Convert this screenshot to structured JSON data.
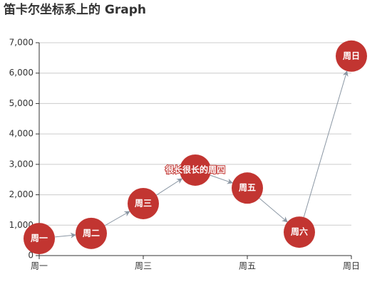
{
  "chart_data": {
    "type": "graph",
    "title": "笛卡尔坐标系上的 Graph",
    "categories": [
      "周一",
      null,
      "周三",
      null,
      "周五",
      null,
      "周日"
    ],
    "series": [
      {
        "names": [
          "周一",
          "周二",
          "周三",
          "很长很长的周四",
          "周五",
          "周六",
          "周日"
        ],
        "color": "#c23531",
        "values": [
          560,
          730,
          1710,
          2810,
          2220,
          770,
          6560
        ]
      }
    ],
    "ylim": [
      0,
      7000
    ],
    "yticks": [
      0,
      {
        "value": 1000,
        "label": "1,000"
      },
      {
        "value": 2000,
        "label": "2,000"
      },
      {
        "value": 3000,
        "label": "3,000"
      },
      {
        "value": 4000,
        "label": "4,000"
      },
      {
        "value": 5000,
        "label": "5,000"
      },
      {
        "value": 6000,
        "label": "6,000"
      },
      {
        "value": 7000,
        "label": "7,000"
      }
    ],
    "grid": true
  }
}
